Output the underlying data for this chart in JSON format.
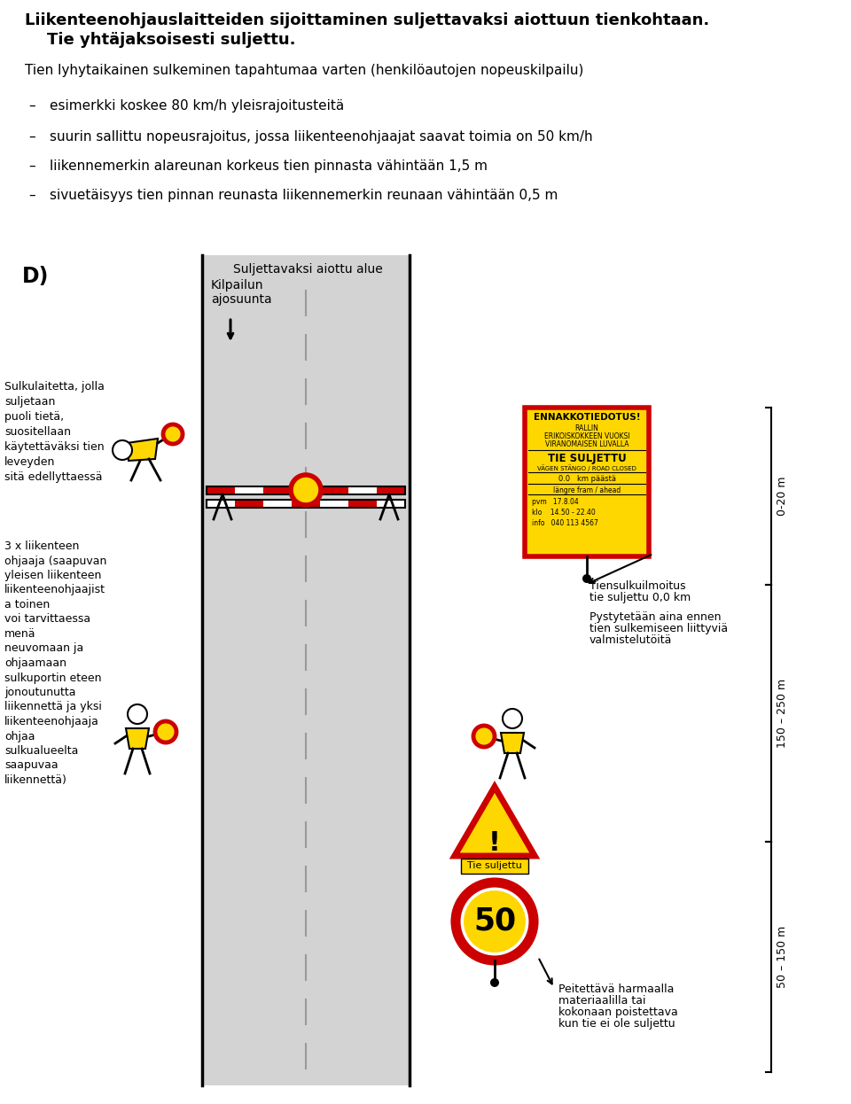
{
  "title_line1": "Liikenteenohjauslaitteiden sijoittaminen suljettavaksi aiottuun tienkohtaan.",
  "title_line2": "    Tie yhtäjaksoisesti suljettu.",
  "intro": "Tien lyhytaikainen sulkeminen tapahtumaa varten (henkilöautojen nopeuskilpailu)",
  "bullets": [
    "esimerkki koskee 80 km/h yleisrajoitusteitä",
    "suurin sallittu nopeusrajoitus, jossa liikenteenohjaajat saavat toimia on 50 km/h",
    "liikennemerkin alareunan korkeus tien pinnasta vähintään 1,5 m",
    "sivuetäisyys tien pinnan reunasta liikennemerkin reunaan vähintään 0,5 m"
  ],
  "D_label": "D)",
  "sulj_label": "Suljettavaksi aiottu alue",
  "kilp_label": "Kilpailun\najosuunta",
  "left_text1": "Sulkulaitetta, jolla\nsuljetaan\npuoli tietä,\nsuositellaan\nkäytettäväksi tien\nleveyden\nsitä edellyttaessä",
  "left_text2": "3 x liikenteen\nohjaaja (saapuvan\nyleisen liikenteen\nliikenteenohjaajist\na toinen\nvoi tarvittaessa\nmenä\nneuvomaan ja\nohjaamaan\nsulkuportin eteen\njonoutunutta\nliikennettä ja yksi\nliikenteenohjaaja\nohjaa\nsulkualueelta\nsaapuvaa\nliikennettä)",
  "right_annot1_l1": "Tiensulkuilmoitus",
  "right_annot1_l2": "tie suljettu 0,0 km",
  "right_annot1_l3": "Pystytetään aina ennen",
  "right_annot1_l4": "tien sulkemiseen liittyviä",
  "right_annot1_l5": "valmistelutöitä",
  "right_annot2_l1": "Peitettävä harmaalla",
  "right_annot2_l2": "materiaalilla tai",
  "right_annot2_l3": "kokonaan poistettava",
  "right_annot2_l4": "kun tie ei ole suljettu",
  "sign_l1": "ENNAKKOTIEDOTUS!",
  "sign_l2": "RALLIN",
  "sign_l3": "ERIKOISKOKKEEN VUOKSI",
  "sign_l4": "VIRANOMAISEN LUVALLA",
  "sign_l5": "TIE SULJETTU",
  "sign_l6": "VÄGEN STÄNGO / ROAD CLOSED",
  "sign_l7": "0.0   km päästä",
  "sign_l8": "längre fram / ahead",
  "sign_l9": "pvm   17.8.04",
  "sign_l10": "klo    14.50 - 22.40",
  "sign_l11": "info   040 113 4567",
  "dim1": "0-20 m",
  "dim2": "150 – 250 m",
  "dim3": "50 – 150 m",
  "Tie_suljettu": "Tie suljettu",
  "speed": "50",
  "road_gray": "#d3d3d3",
  "yellow": "#FFD700",
  "red": "#CC0000",
  "black": "#000000",
  "white": "#ffffff"
}
